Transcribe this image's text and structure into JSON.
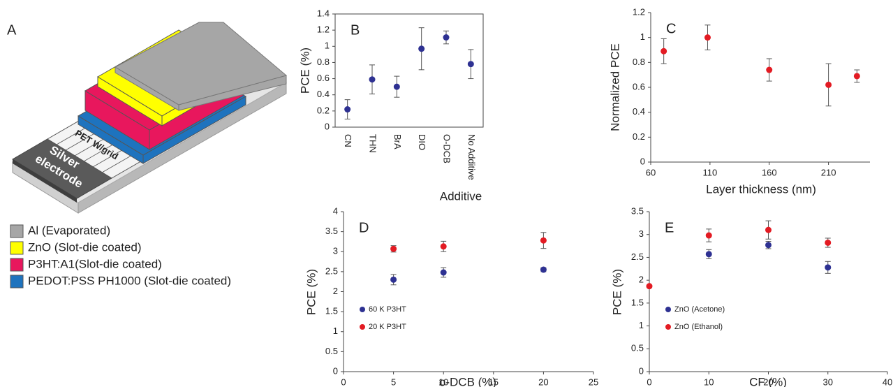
{
  "device": {
    "panel_label": "A",
    "electrode_label": [
      "Silver",
      "electrode"
    ],
    "substrate_label": "PET W/grid",
    "legend": [
      {
        "label": "Al (Evaporated)",
        "color": "#a6a6a6"
      },
      {
        "label": "ZnO (Slot-die coated)",
        "color": "#ffff00"
      },
      {
        "label": "P3HT:A1(Slot-die coated)",
        "color": "#e8175d"
      },
      {
        "label": "PEDOT:PSS PH1000 (Slot-die coated)",
        "color": "#1e73be"
      }
    ]
  },
  "chart_data": [
    {
      "type": "scatter",
      "panel_label": "B",
      "x_label": "Additive",
      "y_label": "PCE (%)",
      "frame": true,
      "categories": [
        "CN",
        "THN",
        "BrA",
        "DIO",
        "O-DCB",
        "No Additive"
      ],
      "values": [
        0.22,
        0.59,
        0.5,
        0.97,
        1.11,
        0.78
      ],
      "errors": [
        0.12,
        0.18,
        0.13,
        0.26,
        0.08,
        0.18
      ],
      "color": "#2e3192",
      "ylim": [
        0,
        1.4
      ],
      "yticks": [
        0,
        0.2,
        0.4,
        0.6,
        0.8,
        1,
        1.2,
        1.4
      ]
    },
    {
      "type": "scatter",
      "panel_label": "C",
      "x_label": "Layer thickness (nm)",
      "y_label": "Normalized PCE",
      "x": [
        71,
        108,
        160,
        210,
        234
      ],
      "values": [
        0.89,
        1.0,
        0.74,
        0.62,
        0.69
      ],
      "errors": [
        0.1,
        0.1,
        0.09,
        0.17,
        0.05
      ],
      "color": "#e31b23",
      "xlim": [
        60,
        245
      ],
      "xticks": [
        60,
        110,
        160,
        210
      ],
      "ylim": [
        0,
        1.2
      ],
      "yticks": [
        0,
        0.2,
        0.4,
        0.6,
        0.8,
        1,
        1.2
      ]
    },
    {
      "type": "scatter",
      "panel_label": "D",
      "x_label": "o-DCB (%)",
      "y_label": "PCE (%)",
      "legend": "lower left",
      "series": [
        {
          "name": "60 K P3HT",
          "color": "#2e3192",
          "x": [
            5,
            10,
            20
          ],
          "values": [
            2.3,
            2.48,
            2.55
          ],
          "errors": [
            0.13,
            0.12,
            0.05
          ]
        },
        {
          "name": "20 K P3HT",
          "color": "#e31b23",
          "x": [
            5,
            10,
            20
          ],
          "values": [
            3.07,
            3.13,
            3.28
          ],
          "errors": [
            0.08,
            0.13,
            0.2
          ]
        }
      ],
      "xlim": [
        0,
        25
      ],
      "xticks": [
        0,
        5,
        10,
        15,
        20,
        25
      ],
      "ylim": [
        0,
        4
      ],
      "yticks": [
        0,
        0.5,
        1,
        1.5,
        2,
        2.5,
        3,
        3.5,
        4
      ]
    },
    {
      "type": "scatter",
      "panel_label": "E",
      "x_label": "CF (%)",
      "y_label": "PCE (%)",
      "legend": "lower left",
      "series": [
        {
          "name": "ZnO (Acetone)",
          "color": "#2e3192",
          "x": [
            10,
            20,
            30
          ],
          "values": [
            2.57,
            2.77,
            2.28
          ],
          "errors": [
            0.1,
            0.08,
            0.13
          ]
        },
        {
          "name": "ZnO (Ethanol)",
          "color": "#e31b23",
          "x": [
            0,
            10,
            20,
            30
          ],
          "values": [
            1.87,
            2.98,
            3.1,
            2.82
          ],
          "errors": [
            null,
            0.14,
            0.2,
            0.1
          ]
        }
      ],
      "xlim": [
        0,
        40
      ],
      "xticks": [
        0,
        10,
        20,
        30,
        40
      ],
      "ylim": [
        0,
        3.5
      ],
      "yticks": [
        0,
        0.5,
        1,
        1.5,
        2,
        2.5,
        3,
        3.5
      ]
    }
  ]
}
